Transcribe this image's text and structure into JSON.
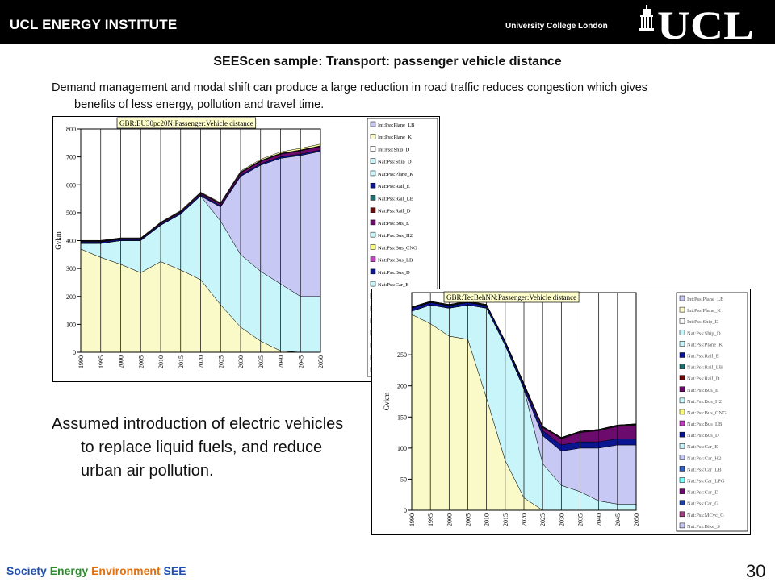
{
  "header": {
    "institute": "UCL ENERGY INSTITUTE",
    "university": "University College London",
    "logo_text": "UCL"
  },
  "slide": {
    "title": "SEEScen sample: Transport: passenger vehicle distance",
    "subtitle": "Demand management and modal shift can produce a large reduction in road traffic reduces congestion which gives benefits of less energy, pollution and travel time.",
    "bullet": "Assumed introduction of electric vehicles to replace liquid fuels, and reduce urban air pollution.",
    "page_number": "30"
  },
  "footer": {
    "society": "Society",
    "energy": "Energy",
    "environment": "Environment",
    "see": "SEE",
    "colors": {
      "society": "#1f4fb0",
      "energy": "#2e8b2e",
      "environment": "#e07010",
      "see": "#1f4fb0"
    }
  },
  "chart_data": [
    {
      "type": "area",
      "title": "GBR:EU30pc20N:Passenger:Vehicle distance",
      "ylabel": "Gvkm",
      "xlabel": "",
      "ylim": [
        0,
        800
      ],
      "yticks": [
        0,
        100,
        200,
        300,
        400,
        500,
        600,
        700,
        800
      ],
      "grid": "vertical",
      "categories": [
        "1990",
        "1995",
        "2000",
        "2005",
        "2010",
        "2015",
        "2020",
        "2025",
        "2030",
        "2035",
        "2040",
        "2045",
        "2050"
      ],
      "legend": [
        "Int:Pss:Plane_LB",
        "Int:Pss:Plane_K",
        "Int:Pss:Ship_D",
        "Nat:Pss:Ship_D",
        "Nat:Pss:Plane_K",
        "Nat:Pss:Rail_E",
        "Nat:Pss:Rail_LB",
        "Nat:Pss:Rail_D",
        "Nat:Pss:Bus_E",
        "Nat:Pss:Bus_H2",
        "Nat:Pss:Bus_CNG",
        "Nat:Pss:Bus_LB",
        "Nat:Pss:Bus_D",
        "Nat:Pss:Car_E",
        "Nat:Pss:Car_H2",
        "Nat:Pss:Car_LB",
        "Nat:Pss:Car_LPG",
        "Nat:Pss:Car_D",
        "Nat:Pss:Car_G",
        "Nat:Pss:MCyc_G",
        "Nat:Pss:Bike_S"
      ],
      "series": [
        {
          "color": "#fafac8",
          "values": [
            370,
            340,
            315,
            285,
            325,
            295,
            260,
            170,
            90,
            40,
            5,
            0,
            0
          ]
        },
        {
          "color": "#c8f5fa",
          "values": [
            20,
            50,
            85,
            115,
            130,
            200,
            300,
            300,
            260,
            250,
            240,
            200,
            200
          ]
        },
        {
          "color": "#c8c8f5",
          "values": [
            0,
            0,
            0,
            0,
            0,
            0,
            0,
            50,
            280,
            380,
            450,
            505,
            520
          ]
        },
        {
          "color": "#0a1690",
          "values": [
            5,
            5,
            4,
            4,
            4,
            5,
            5,
            5,
            5,
            5,
            5,
            5,
            5
          ]
        },
        {
          "color": "#6d0a6d",
          "values": [
            2,
            2,
            2,
            2,
            3,
            3,
            4,
            6,
            8,
            9,
            10,
            12,
            12
          ]
        },
        {
          "color": "#101010",
          "values": [
            3,
            3,
            3,
            3,
            3,
            3,
            3,
            3,
            3,
            3,
            3,
            3,
            3
          ]
        },
        {
          "color": "#fafaa0",
          "values": [
            1,
            1,
            1,
            1,
            1,
            2,
            2,
            2,
            3,
            4,
            5,
            6,
            6
          ]
        }
      ]
    },
    {
      "type": "area",
      "title": "GBR:TecBehNN:Passenger:Vehicle distance",
      "ylabel": "Gvkm",
      "xlabel": "",
      "ylim": [
        0,
        350
      ],
      "yticks": [
        0,
        50,
        100,
        150,
        200,
        250
      ],
      "grid": "vertical",
      "categories": [
        "1990",
        "1995",
        "2000",
        "2005",
        "2010",
        "2015",
        "2020",
        "2025",
        "2030",
        "2035",
        "2040",
        "2045",
        "2050"
      ],
      "legend": [
        "Int:Pss:Plane_LB",
        "Int:Pss:Plane_K",
        "Int:Pss:Ship_D",
        "Nat:Pss:Ship_D",
        "Nat:Pss:Plane_K",
        "Nat:Pss:Rail_E",
        "Nat:Pss:Rail_LB",
        "Nat:Pss:Rail_D",
        "Nat:Pss:Bus_E",
        "Nat:Pss:Bus_H2",
        "Nat:Pss:Bus_CNG",
        "Nat:Pss:Bus_LB",
        "Nat:Pss:Bus_D",
        "Nat:Pss:Car_E",
        "Nat:Pss:Car_H2",
        "Nat:Pss:Car_LB",
        "Nat:Pss:Car_LPG",
        "Nat:Pss:Car_D",
        "Nat:Pss:Car_G",
        "Nat:Pss:MCyc_G",
        "Nat:Pss:Bike_S"
      ],
      "series": [
        {
          "color": "#fafac8",
          "values": [
            315,
            300,
            280,
            275,
            180,
            80,
            20,
            0,
            0,
            0,
            0,
            0,
            0
          ]
        },
        {
          "color": "#c8f5fa",
          "values": [
            5,
            30,
            45,
            55,
            145,
            185,
            175,
            75,
            40,
            30,
            15,
            10,
            10
          ]
        },
        {
          "color": "#c8c8f5",
          "values": [
            0,
            0,
            0,
            0,
            0,
            0,
            0,
            45,
            55,
            70,
            85,
            95,
            95
          ]
        },
        {
          "color": "#0a1690",
          "values": [
            5,
            4,
            4,
            4,
            4,
            5,
            5,
            8,
            10,
            10,
            10,
            10,
            10
          ]
        },
        {
          "color": "#6d0a6d",
          "values": [
            0,
            0,
            0,
            0,
            0,
            0,
            2,
            5,
            10,
            15,
            18,
            20,
            22
          ]
        },
        {
          "color": "#101010",
          "values": [
            2,
            2,
            2,
            2,
            2,
            2,
            2,
            2,
            2,
            2,
            2,
            2,
            2
          ]
        },
        {
          "color": "#fafaa0",
          "values": [
            0,
            0,
            0,
            0,
            0,
            0,
            0,
            0,
            0,
            0,
            0,
            0,
            0
          ]
        }
      ]
    }
  ]
}
